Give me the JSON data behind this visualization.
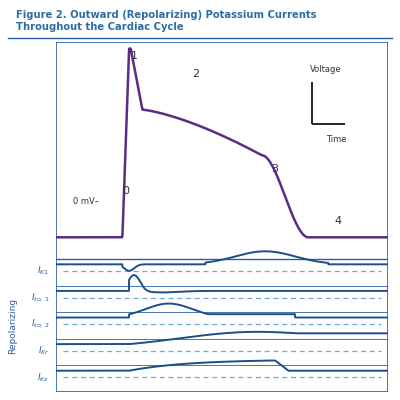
{
  "title_line1": "Figure 2. Outward (Repolarizing) Potassium Currents",
  "title_line2": "Throughout the Cardiac Cycle",
  "title_color": "#2e6da4",
  "bg_color": "#ffffff",
  "border_color": "#2a5fa5",
  "voltage_color": "#5b2d82",
  "current_color": "#1a4f8a",
  "dashed_color": "#6daad4",
  "label_color": "#2a5fa5",
  "text_color": "#333333",
  "repolarizing_label": "Repolarizing",
  "voltage_label": "Voltage",
  "time_label": "Time",
  "zeromv_label": "0 mV–",
  "panel_labels": [
    "$I_{K1}$",
    "$I_{to, 1}$",
    "$I_{to, 2}$",
    "$I_{Kr}$",
    "$I_{Ks}$"
  ],
  "figsize": [
    4.0,
    4.0
  ],
  "dpi": 100
}
